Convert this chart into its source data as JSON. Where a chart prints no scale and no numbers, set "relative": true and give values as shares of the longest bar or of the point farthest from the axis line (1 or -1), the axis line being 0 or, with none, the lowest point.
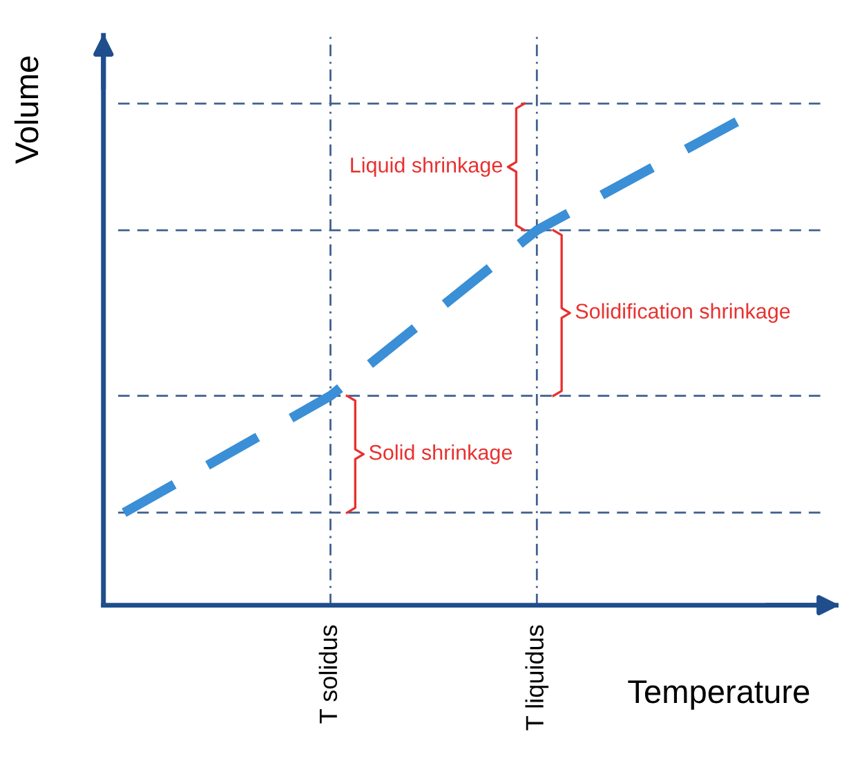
{
  "chart_data": {
    "type": "line",
    "relative": true,
    "xlabel": "Temperature",
    "ylabel": "Volume",
    "categories": [
      null,
      "T solidus",
      "T liquidus",
      null
    ],
    "series": [
      {
        "color": "#3a8fd6",
        "values": [
          0.19,
          0.43,
          0.77,
          1.0
        ]
      }
    ],
    "line_style": "dashed",
    "marker": "none",
    "grid": "x",
    "legend": false,
    "ref_lines": [
      {
        "axis": "y",
        "value": 0.19,
        "color": "#3f5f8f",
        "line_style": "dashed"
      },
      {
        "axis": "y",
        "value": 0.43,
        "color": "#3f5f8f",
        "line_style": "dashed"
      },
      {
        "axis": "y",
        "value": 0.77,
        "color": "#3f5f8f",
        "line_style": "dashed"
      },
      {
        "axis": "y",
        "value": 1.03,
        "color": "#3f5f8f",
        "line_style": "dashed"
      }
    ],
    "annotations": [
      "Liquid shrinkage",
      "Solidification shrinkage",
      "Solid shrinkage"
    ]
  }
}
